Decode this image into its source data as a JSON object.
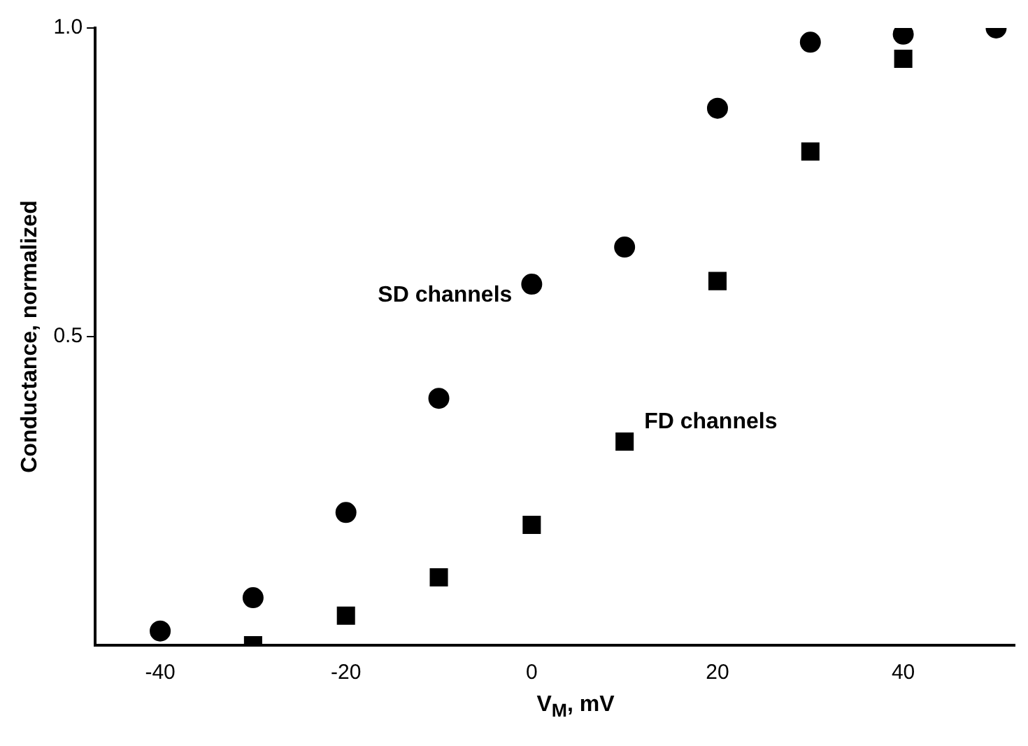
{
  "chart_data": {
    "type": "scatter",
    "xlabel": "V$_{M}$, mV",
    "ylabel": "Conductance, normalized",
    "series": [
      {
        "name": "SD channels",
        "color": "#000000",
        "marker": "circle",
        "x": [
          -40,
          -30,
          -20,
          -10,
          0,
          10,
          20,
          30,
          40,
          50
        ],
        "values": [
          0.023,
          0.077,
          0.215,
          0.4,
          0.585,
          0.645,
          0.87,
          0.977,
          0.99,
          1.0
        ]
      },
      {
        "name": "FD channels",
        "color": "#000000",
        "marker": "square",
        "x": [
          -30,
          -20,
          -10,
          0,
          10,
          20,
          30,
          40
        ],
        "values": [
          0.0,
          0.048,
          0.11,
          0.195,
          0.33,
          0.59,
          0.8,
          0.95
        ]
      }
    ],
    "xlim": [
      -47,
      52
    ],
    "xticks": [
      -40,
      -20,
      0,
      20,
      40
    ],
    "ylim": [
      0,
      1.0
    ],
    "yticks": [
      {
        "value": 0.5,
        "label": "0.5"
      },
      {
        "value": 1.0,
        "label": "1.0"
      }
    ],
    "grid": false,
    "legend": false
  }
}
